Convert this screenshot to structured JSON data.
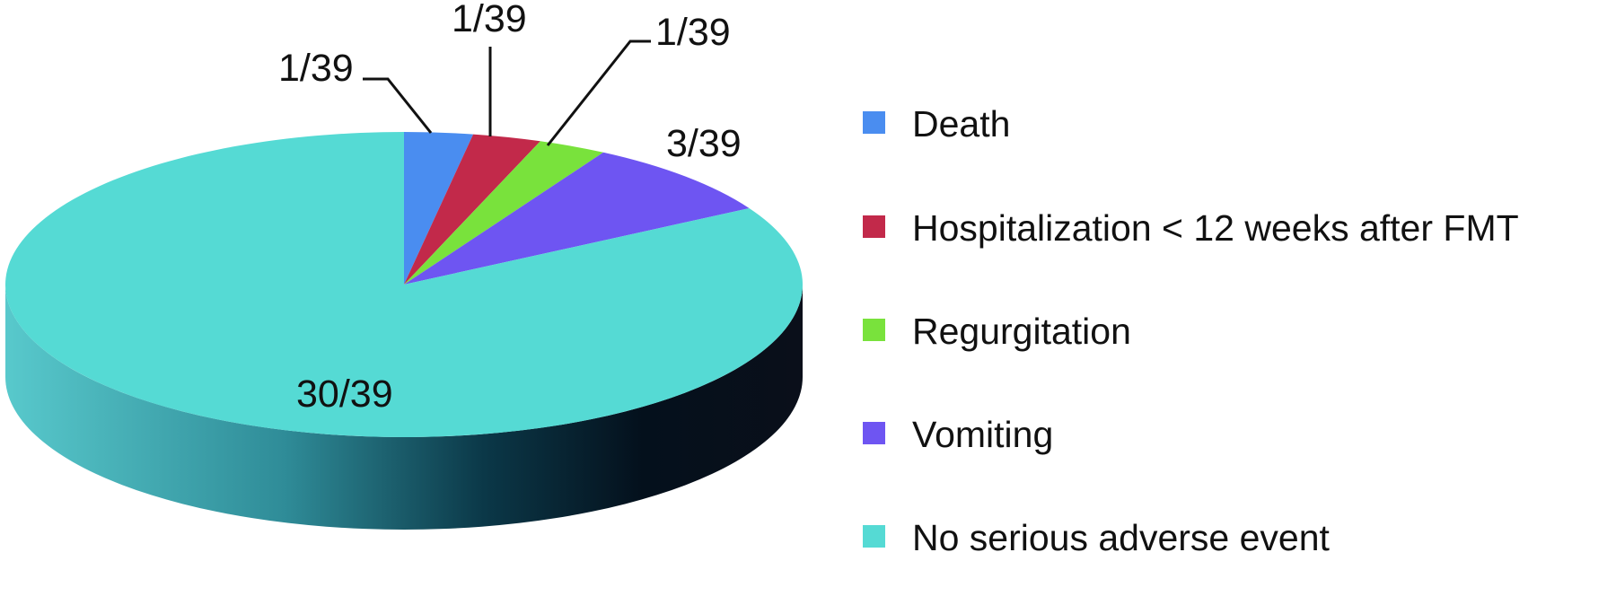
{
  "chart_data": {
    "type": "pie",
    "style": "3d",
    "legend_position": "right",
    "slices": [
      {
        "name": "Death",
        "value": 1,
        "label": "1/39",
        "color": "#4a8df0"
      },
      {
        "name": "Hospitalization < 12 weeks after FMT",
        "value": 1,
        "label": "1/39",
        "color": "#c2294a"
      },
      {
        "name": "Regurgitation",
        "value": 1,
        "label": "1/39",
        "color": "#79e23c"
      },
      {
        "name": "Vomiting",
        "value": 3,
        "label": "3/39",
        "color": "#6e55f2"
      },
      {
        "name": "No serious adverse event",
        "value": 30,
        "label": "30/39",
        "color": "#55dad4"
      }
    ],
    "side_color_dark": "#0a0f1a"
  }
}
